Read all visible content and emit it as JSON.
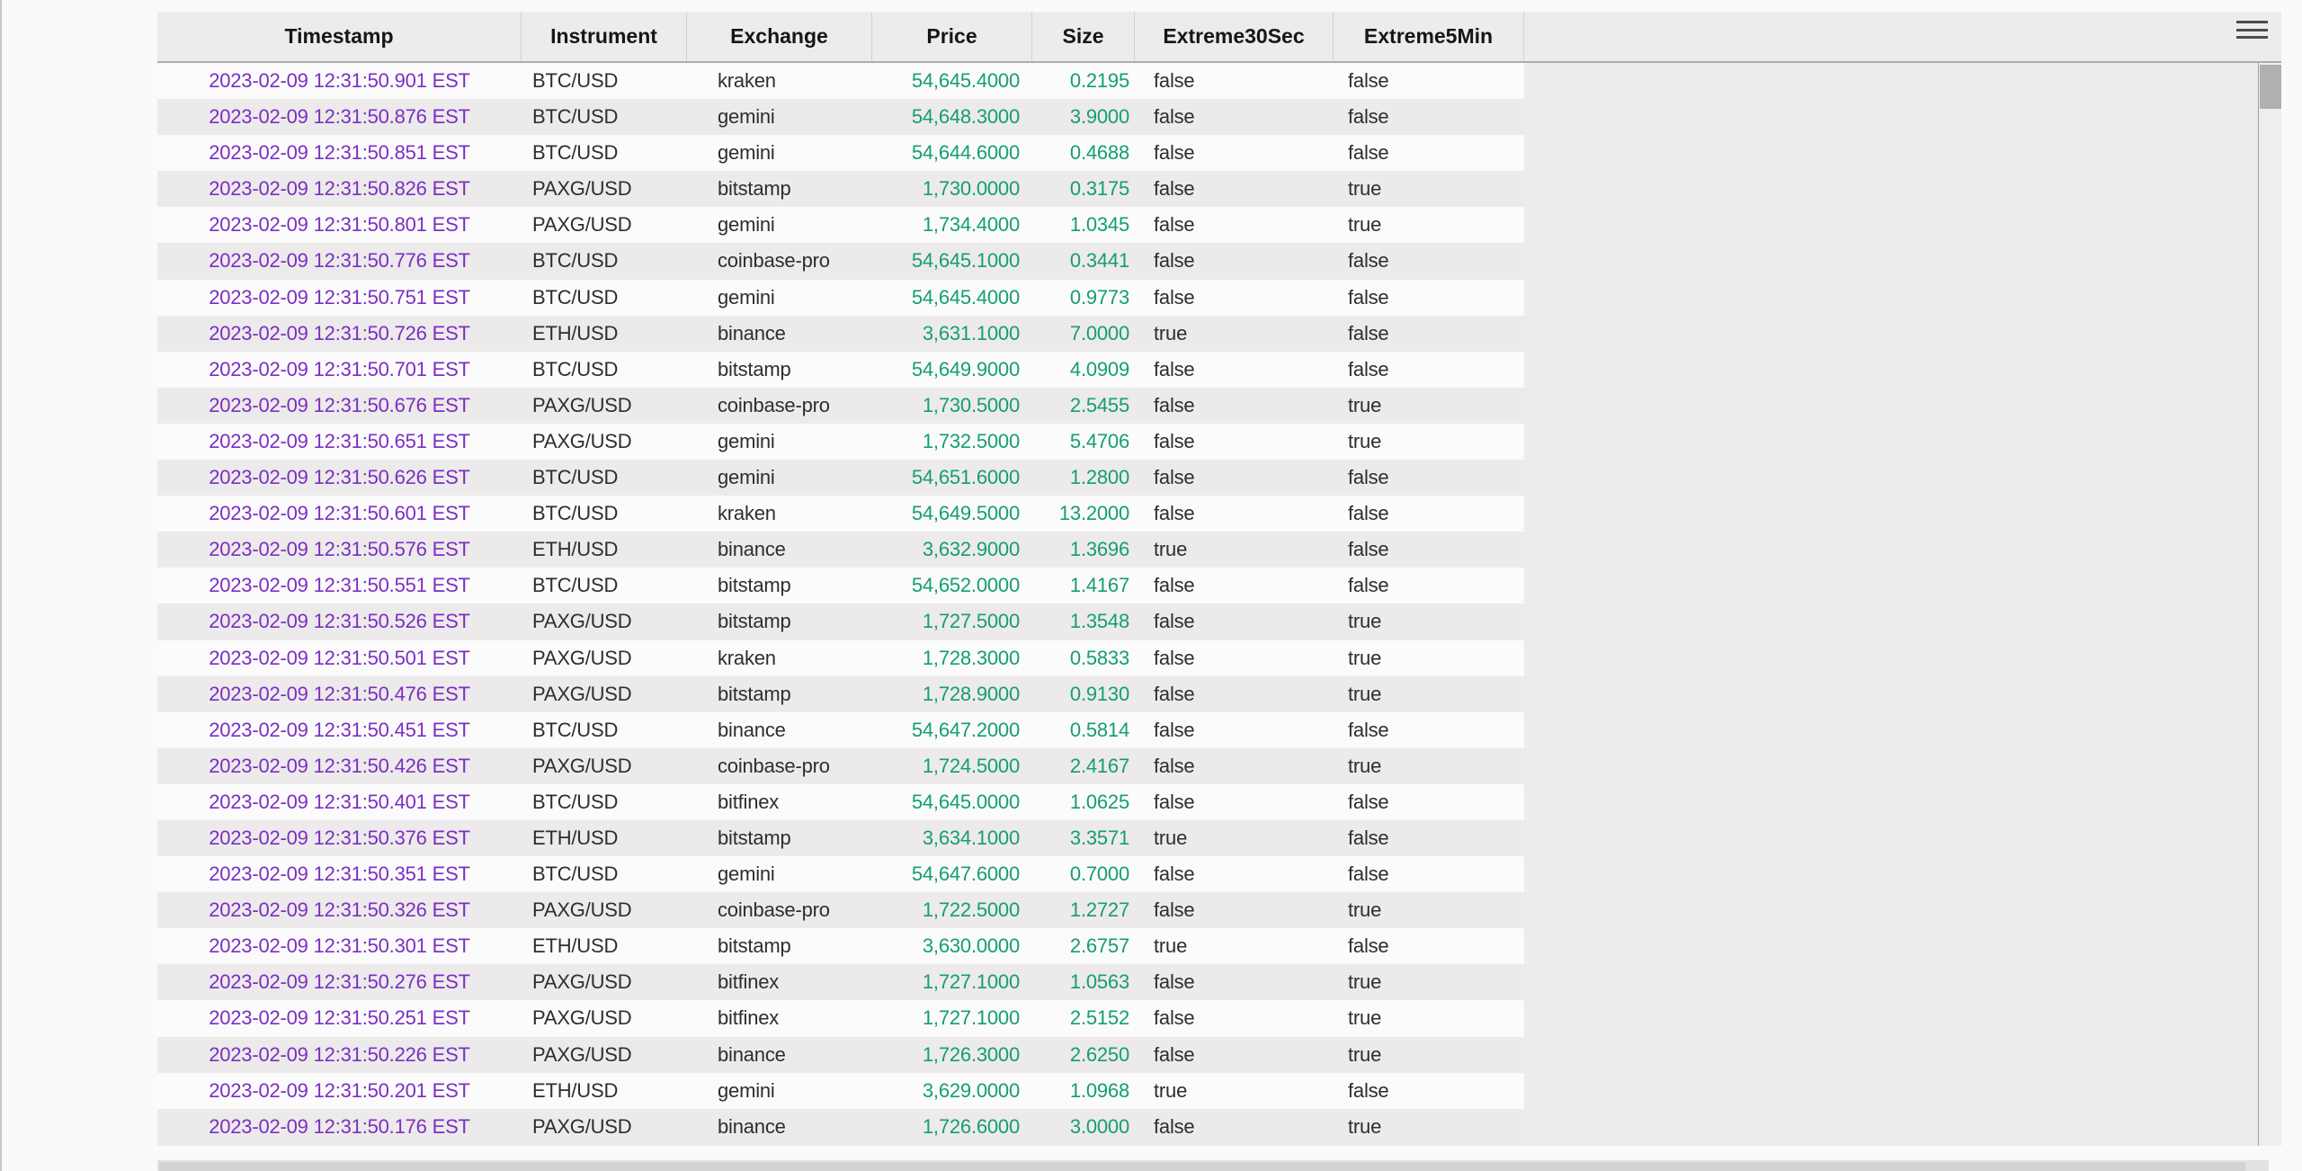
{
  "panel": {
    "menu_icon": "hamburger-menu"
  },
  "table": {
    "columns": [
      {
        "key": "timestamp",
        "label": "Timestamp"
      },
      {
        "key": "instrument",
        "label": "Instrument"
      },
      {
        "key": "exchange",
        "label": "Exchange"
      },
      {
        "key": "price",
        "label": "Price"
      },
      {
        "key": "size",
        "label": "Size"
      },
      {
        "key": "extreme30sec",
        "label": "Extreme30Sec"
      },
      {
        "key": "extreme5min",
        "label": "Extreme5Min"
      }
    ],
    "rows": [
      [
        "2023-02-09 12:31:50.901 EST",
        "BTC/USD",
        "kraken",
        "54,645.4000",
        "0.2195",
        "false",
        "false"
      ],
      [
        "2023-02-09 12:31:50.876 EST",
        "BTC/USD",
        "gemini",
        "54,648.3000",
        "3.9000",
        "false",
        "false"
      ],
      [
        "2023-02-09 12:31:50.851 EST",
        "BTC/USD",
        "gemini",
        "54,644.6000",
        "0.4688",
        "false",
        "false"
      ],
      [
        "2023-02-09 12:31:50.826 EST",
        "PAXG/USD",
        "bitstamp",
        "1,730.0000",
        "0.3175",
        "false",
        "true"
      ],
      [
        "2023-02-09 12:31:50.801 EST",
        "PAXG/USD",
        "gemini",
        "1,734.4000",
        "1.0345",
        "false",
        "true"
      ],
      [
        "2023-02-09 12:31:50.776 EST",
        "BTC/USD",
        "coinbase-pro",
        "54,645.1000",
        "0.3441",
        "false",
        "false"
      ],
      [
        "2023-02-09 12:31:50.751 EST",
        "BTC/USD",
        "gemini",
        "54,645.4000",
        "0.9773",
        "false",
        "false"
      ],
      [
        "2023-02-09 12:31:50.726 EST",
        "ETH/USD",
        "binance",
        "3,631.1000",
        "7.0000",
        "true",
        "false"
      ],
      [
        "2023-02-09 12:31:50.701 EST",
        "BTC/USD",
        "bitstamp",
        "54,649.9000",
        "4.0909",
        "false",
        "false"
      ],
      [
        "2023-02-09 12:31:50.676 EST",
        "PAXG/USD",
        "coinbase-pro",
        "1,730.5000",
        "2.5455",
        "false",
        "true"
      ],
      [
        "2023-02-09 12:31:50.651 EST",
        "PAXG/USD",
        "gemini",
        "1,732.5000",
        "5.4706",
        "false",
        "true"
      ],
      [
        "2023-02-09 12:31:50.626 EST",
        "BTC/USD",
        "gemini",
        "54,651.6000",
        "1.2800",
        "false",
        "false"
      ],
      [
        "2023-02-09 12:31:50.601 EST",
        "BTC/USD",
        "kraken",
        "54,649.5000",
        "13.2000",
        "false",
        "false"
      ],
      [
        "2023-02-09 12:31:50.576 EST",
        "ETH/USD",
        "binance",
        "3,632.9000",
        "1.3696",
        "true",
        "false"
      ],
      [
        "2023-02-09 12:31:50.551 EST",
        "BTC/USD",
        "bitstamp",
        "54,652.0000",
        "1.4167",
        "false",
        "false"
      ],
      [
        "2023-02-09 12:31:50.526 EST",
        "PAXG/USD",
        "bitstamp",
        "1,727.5000",
        "1.3548",
        "false",
        "true"
      ],
      [
        "2023-02-09 12:31:50.501 EST",
        "PAXG/USD",
        "kraken",
        "1,728.3000",
        "0.5833",
        "false",
        "true"
      ],
      [
        "2023-02-09 12:31:50.476 EST",
        "PAXG/USD",
        "bitstamp",
        "1,728.9000",
        "0.9130",
        "false",
        "true"
      ],
      [
        "2023-02-09 12:31:50.451 EST",
        "BTC/USD",
        "binance",
        "54,647.2000",
        "0.5814",
        "false",
        "false"
      ],
      [
        "2023-02-09 12:31:50.426 EST",
        "PAXG/USD",
        "coinbase-pro",
        "1,724.5000",
        "2.4167",
        "false",
        "true"
      ],
      [
        "2023-02-09 12:31:50.401 EST",
        "BTC/USD",
        "bitfinex",
        "54,645.0000",
        "1.0625",
        "false",
        "false"
      ],
      [
        "2023-02-09 12:31:50.376 EST",
        "ETH/USD",
        "bitstamp",
        "3,634.1000",
        "3.3571",
        "true",
        "false"
      ],
      [
        "2023-02-09 12:31:50.351 EST",
        "BTC/USD",
        "gemini",
        "54,647.6000",
        "0.7000",
        "false",
        "false"
      ],
      [
        "2023-02-09 12:31:50.326 EST",
        "PAXG/USD",
        "coinbase-pro",
        "1,722.5000",
        "1.2727",
        "false",
        "true"
      ],
      [
        "2023-02-09 12:31:50.301 EST",
        "ETH/USD",
        "bitstamp",
        "3,630.0000",
        "2.6757",
        "true",
        "false"
      ],
      [
        "2023-02-09 12:31:50.276 EST",
        "PAXG/USD",
        "bitfinex",
        "1,727.1000",
        "1.0563",
        "false",
        "true"
      ],
      [
        "2023-02-09 12:31:50.251 EST",
        "PAXG/USD",
        "bitfinex",
        "1,727.1000",
        "2.5152",
        "false",
        "true"
      ],
      [
        "2023-02-09 12:31:50.226 EST",
        "PAXG/USD",
        "binance",
        "1,726.3000",
        "2.6250",
        "false",
        "true"
      ],
      [
        "2023-02-09 12:31:50.201 EST",
        "ETH/USD",
        "gemini",
        "3,629.0000",
        "1.0968",
        "true",
        "false"
      ],
      [
        "2023-02-09 12:31:50.176 EST",
        "PAXG/USD",
        "binance",
        "1,726.6000",
        "3.0000",
        "false",
        "true"
      ]
    ]
  },
  "colors": {
    "timestamp_link": "#7b2fc4",
    "number_green": "#13a06b",
    "text": "#2e2e2e",
    "row_white": "#fbfbfb",
    "stripe_gray": "#eceaea",
    "panel_bg": "#edebeb"
  }
}
